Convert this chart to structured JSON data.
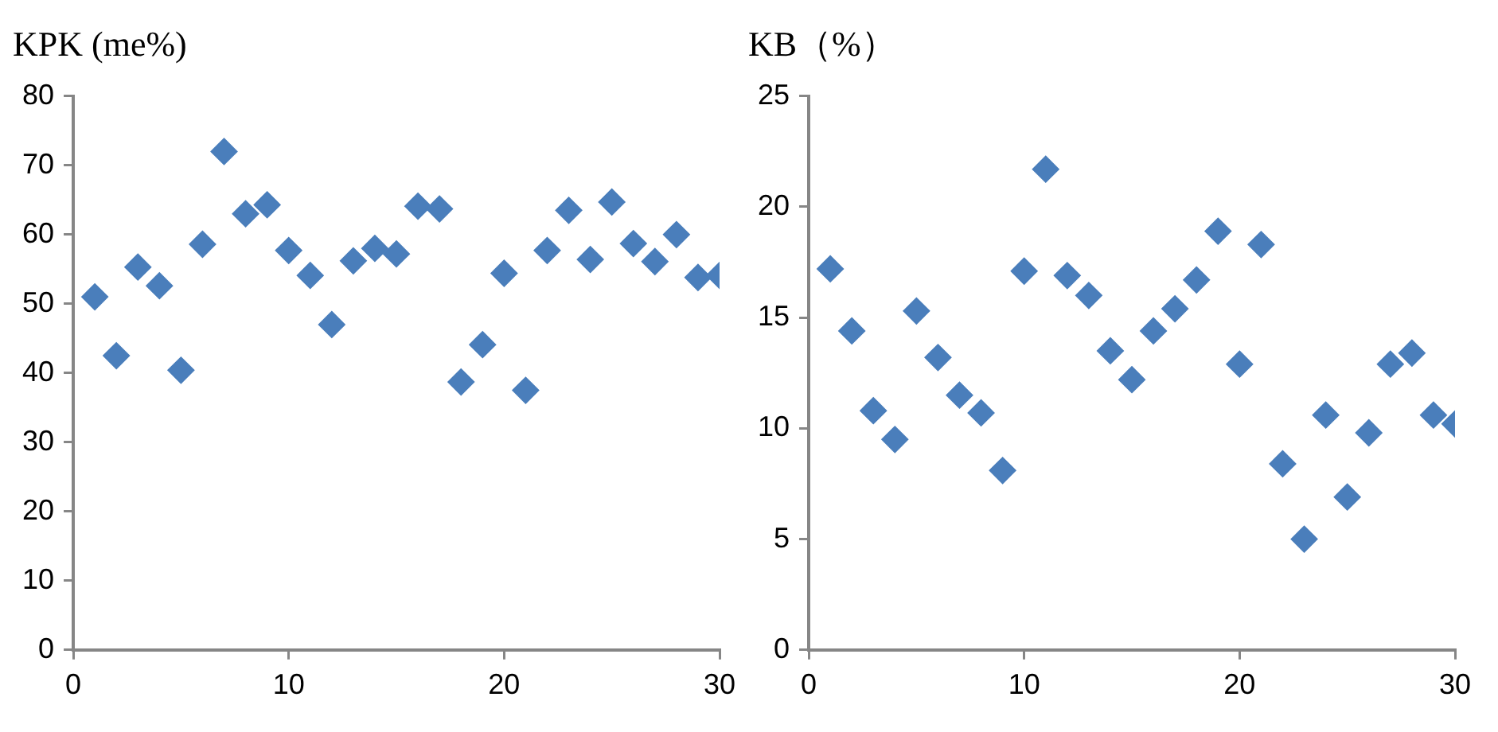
{
  "chart_data": [
    {
      "type": "scatter",
      "title": "KPK (me%)",
      "x": [
        1,
        2,
        3,
        4,
        5,
        6,
        7,
        8,
        9,
        10,
        11,
        12,
        13,
        14,
        15,
        16,
        17,
        18,
        19,
        20,
        21,
        22,
        23,
        24,
        25,
        26,
        27,
        28,
        29,
        30
      ],
      "series": [
        {
          "color": "#4a7ebb",
          "values": [
            51,
            42.5,
            55.3,
            52.6,
            40.4,
            58.6,
            72,
            63,
            64.3,
            57.7,
            54.1,
            47,
            56.2,
            58,
            57.2,
            64.1,
            63.7,
            38.7,
            44.1,
            54.4,
            37.5,
            57.7,
            63.5,
            56.4,
            64.7,
            58.7,
            56.1,
            60,
            53.8,
            54.1
          ]
        }
      ],
      "xlim": [
        0,
        30
      ],
      "xticks": [
        0,
        10,
        20,
        30
      ],
      "ylim": [
        0,
        80
      ],
      "yticks": [
        0,
        10,
        20,
        30,
        40,
        50,
        60,
        70,
        80
      ],
      "marker": "diamond",
      "grid": false,
      "legend": false
    },
    {
      "type": "scatter",
      "title": "KB（%）",
      "x": [
        1,
        2,
        3,
        4,
        5,
        6,
        7,
        8,
        9,
        10,
        11,
        12,
        13,
        14,
        15,
        16,
        17,
        18,
        19,
        20,
        21,
        22,
        23,
        24,
        25,
        26,
        27,
        28,
        29,
        30
      ],
      "series": [
        {
          "color": "#4a7ebb",
          "values": [
            17.2,
            14.4,
            10.8,
            9.5,
            15.3,
            13.2,
            11.5,
            10.7,
            8.1,
            17.1,
            21.7,
            16.9,
            16,
            13.5,
            12.2,
            14.4,
            15.4,
            16.7,
            18.9,
            12.9,
            18.3,
            8.4,
            5,
            10.6,
            6.9,
            9.8,
            12.9,
            13.4,
            10.6,
            10.2
          ]
        }
      ],
      "xlim": [
        0,
        30
      ],
      "xticks": [
        0,
        10,
        20,
        30
      ],
      "ylim": [
        0,
        25
      ],
      "yticks": [
        0,
        5,
        10,
        15,
        20,
        25
      ],
      "marker": "diamond",
      "grid": false,
      "legend": false
    }
  ]
}
